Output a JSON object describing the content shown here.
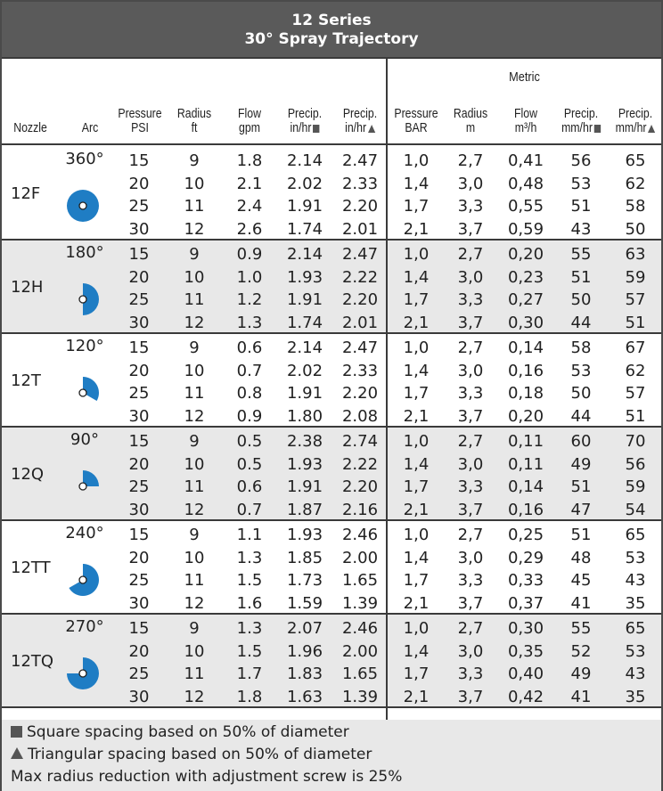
{
  "title": {
    "line1": "12 Series",
    "line2": "30° Spray Trajectory"
  },
  "header": {
    "metric": "Metric",
    "columns": [
      {
        "l1": "",
        "l2": "Nozzle",
        "sym": ""
      },
      {
        "l1": "",
        "l2": "Arc",
        "sym": ""
      },
      {
        "l1": "Pressure",
        "l2": "PSI",
        "sym": ""
      },
      {
        "l1": "Radius",
        "l2": "ft",
        "sym": ""
      },
      {
        "l1": "Flow",
        "l2": "gpm",
        "sym": ""
      },
      {
        "l1": "Precip.",
        "l2": "in/hr",
        "sym": "square"
      },
      {
        "l1": "Precip.",
        "l2": "in/hr",
        "sym": "triangle"
      },
      {
        "l1": "Pressure",
        "l2": "BAR",
        "sym": ""
      },
      {
        "l1": "Radius",
        "l2": "m",
        "sym": ""
      },
      {
        "l1": "Flow",
        "l2": "m³/h",
        "sym": ""
      },
      {
        "l1": "Precip.",
        "l2": "mm/hr",
        "sym": "square"
      },
      {
        "l1": "Precip.",
        "l2": "mm/hr",
        "sym": "triangle"
      }
    ]
  },
  "colors": {
    "arc_blue": "#1f7dc4",
    "title_bg": "#5a5a5a",
    "shade": "#e8e8e8"
  },
  "groups": [
    {
      "nozzle": "12F",
      "arc": "360°",
      "arc_degrees": 360,
      "icon": "full-circle-arc-icon",
      "rows": [
        [
          "15",
          "9",
          "1.8",
          "2.14",
          "2.47",
          "1,0",
          "2,7",
          "0,41",
          "56",
          "65"
        ],
        [
          "20",
          "10",
          "2.1",
          "2.02",
          "2.33",
          "1,4",
          "3,0",
          "0,48",
          "53",
          "62"
        ],
        [
          "25",
          "11",
          "2.4",
          "1.91",
          "2.20",
          "1,7",
          "3,3",
          "0,55",
          "51",
          "58"
        ],
        [
          "30",
          "12",
          "2.6",
          "1.74",
          "2.01",
          "2,1",
          "3,7",
          "0,59",
          "43",
          "50"
        ]
      ]
    },
    {
      "nozzle": "12H",
      "arc": "180°",
      "arc_degrees": 180,
      "icon": "half-circle-arc-icon",
      "rows": [
        [
          "15",
          "9",
          "0.9",
          "2.14",
          "2.47",
          "1,0",
          "2,7",
          "0,20",
          "55",
          "63"
        ],
        [
          "20",
          "10",
          "1.0",
          "1.93",
          "2.22",
          "1,4",
          "3,0",
          "0,23",
          "51",
          "59"
        ],
        [
          "25",
          "11",
          "1.2",
          "1.91",
          "2.20",
          "1,7",
          "3,3",
          "0,27",
          "50",
          "57"
        ],
        [
          "30",
          "12",
          "1.3",
          "1.74",
          "2.01",
          "2,1",
          "3,7",
          "0,30",
          "44",
          "51"
        ]
      ]
    },
    {
      "nozzle": "12T",
      "arc": "120°",
      "arc_degrees": 120,
      "icon": "third-circle-arc-icon",
      "rows": [
        [
          "15",
          "9",
          "0.6",
          "2.14",
          "2.47",
          "1,0",
          "2,7",
          "0,14",
          "58",
          "67"
        ],
        [
          "20",
          "10",
          "0.7",
          "2.02",
          "2.33",
          "1,4",
          "3,0",
          "0,16",
          "53",
          "62"
        ],
        [
          "25",
          "11",
          "0.8",
          "1.91",
          "2.20",
          "1,7",
          "3,3",
          "0,18",
          "50",
          "57"
        ],
        [
          "30",
          "12",
          "0.9",
          "1.80",
          "2.08",
          "2,1",
          "3,7",
          "0,20",
          "44",
          "51"
        ]
      ]
    },
    {
      "nozzle": "12Q",
      "arc": "90°",
      "arc_degrees": 90,
      "icon": "quarter-circle-arc-icon",
      "rows": [
        [
          "15",
          "9",
          "0.5",
          "2.38",
          "2.74",
          "1,0",
          "2,7",
          "0,11",
          "60",
          "70"
        ],
        [
          "20",
          "10",
          "0.5",
          "1.93",
          "2.22",
          "1,4",
          "3,0",
          "0,11",
          "49",
          "56"
        ],
        [
          "25",
          "11",
          "0.6",
          "1.91",
          "2.20",
          "1,7",
          "3,3",
          "0,14",
          "51",
          "59"
        ],
        [
          "30",
          "12",
          "0.7",
          "1.87",
          "2.16",
          "2,1",
          "3,7",
          "0,16",
          "47",
          "54"
        ]
      ]
    },
    {
      "nozzle": "12TT",
      "arc": "240°",
      "arc_degrees": 240,
      "icon": "two-thirds-circle-arc-icon",
      "rows": [
        [
          "15",
          "9",
          "1.1",
          "1.93",
          "2.46",
          "1,0",
          "2,7",
          "0,25",
          "51",
          "65"
        ],
        [
          "20",
          "10",
          "1.3",
          "1.85",
          "2.00",
          "1,4",
          "3,0",
          "0,29",
          "48",
          "53"
        ],
        [
          "25",
          "11",
          "1.5",
          "1.73",
          "1.65",
          "1,7",
          "3,3",
          "0,33",
          "45",
          "43"
        ],
        [
          "30",
          "12",
          "1.6",
          "1.59",
          "1.39",
          "2,1",
          "3,7",
          "0,37",
          "41",
          "35"
        ]
      ]
    },
    {
      "nozzle": "12TQ",
      "arc": "270°",
      "arc_degrees": 270,
      "icon": "three-quarter-circle-arc-icon",
      "rows": [
        [
          "15",
          "9",
          "1.3",
          "2.07",
          "2.46",
          "1,0",
          "2,7",
          "0,30",
          "55",
          "65"
        ],
        [
          "20",
          "10",
          "1.5",
          "1.96",
          "2.00",
          "1,4",
          "3,0",
          "0,35",
          "52",
          "53"
        ],
        [
          "25",
          "11",
          "1.7",
          "1.83",
          "1.65",
          "1,7",
          "3,3",
          "0,40",
          "49",
          "43"
        ],
        [
          "30",
          "12",
          "1.8",
          "1.63",
          "1.39",
          "2,1",
          "3,7",
          "0,42",
          "41",
          "35"
        ]
      ]
    }
  ],
  "footer": {
    "square_note": "Square spacing based on 50% of diameter",
    "triangle_note": "Triangular spacing based on 50% of diameter",
    "adjust_note": "Max radius reduction with adjustment screw is 25%"
  }
}
